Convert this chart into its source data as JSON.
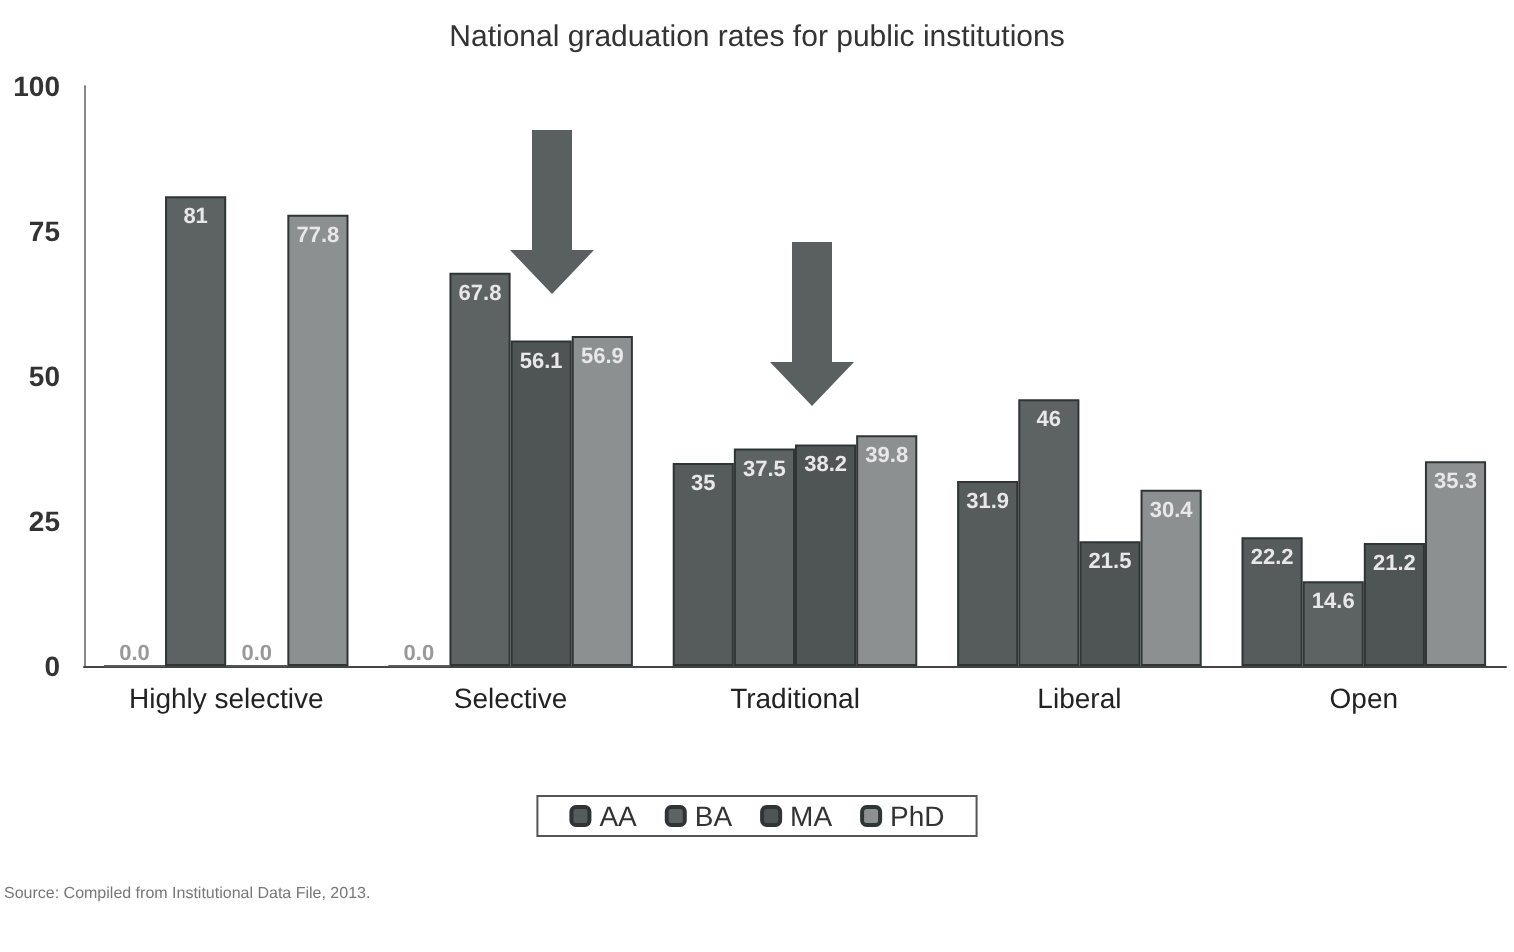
{
  "chart_data": {
    "type": "bar",
    "title": "National graduation rates for public institutions",
    "categories": [
      "Highly selective",
      "Selective",
      "Traditional",
      "Liberal",
      "Open"
    ],
    "series": [
      {
        "name": "AA",
        "color": "#565b5b",
        "values": [
          0,
          0,
          35,
          31.9,
          22.2
        ],
        "value_labels": [
          "0.0",
          "0.0",
          "35",
          "31.9",
          "22.2"
        ]
      },
      {
        "name": "BA",
        "color": "#5d6262",
        "values": [
          81,
          67.8,
          37.5,
          46,
          14.6
        ],
        "value_labels": [
          "81",
          "67.8",
          "37.5",
          "46",
          "14.6"
        ]
      },
      {
        "name": "MA",
        "color": "#4f5454",
        "values": [
          0,
          56.1,
          38.2,
          21.5,
          21.2
        ],
        "value_labels": [
          "0.0",
          "56.1",
          "38.2",
          "21.5",
          "21.2"
        ]
      },
      {
        "name": "PhD",
        "color": "#8c9090",
        "values": [
          77.8,
          56.9,
          39.8,
          30.4,
          35.3
        ],
        "value_labels": [
          "77.8",
          "56.9",
          "39.8",
          "30.4",
          "35.3"
        ]
      }
    ],
    "ylim": [
      0,
      100
    ],
    "yticks": [
      0,
      25,
      50,
      75,
      100
    ],
    "grid": false,
    "legend": "bottom",
    "annotations": [
      "Source: Compiled from Institutional Data File, 2013."
    ]
  }
}
